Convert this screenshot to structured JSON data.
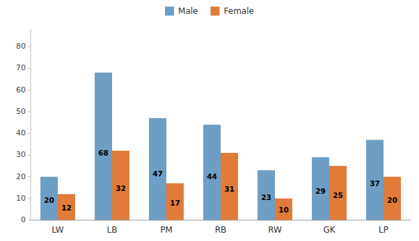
{
  "chart_data": {
    "type": "bar",
    "categories": [
      "LW",
      "LB",
      "PM",
      "RB",
      "RW",
      "GK",
      "LP"
    ],
    "series": [
      {
        "name": "Male",
        "color": "#6e9ec4",
        "values": [
          20,
          68,
          47,
          44,
          23,
          29,
          37
        ]
      },
      {
        "name": "Female",
        "color": "#e07b39",
        "values": [
          12,
          32,
          17,
          31,
          10,
          25,
          20
        ]
      }
    ],
    "ylim": [
      0,
      88
    ],
    "yticks": [
      0,
      10,
      20,
      30,
      40,
      50,
      60,
      70,
      80
    ],
    "grid": false,
    "legend": "top",
    "data_labels": true
  }
}
